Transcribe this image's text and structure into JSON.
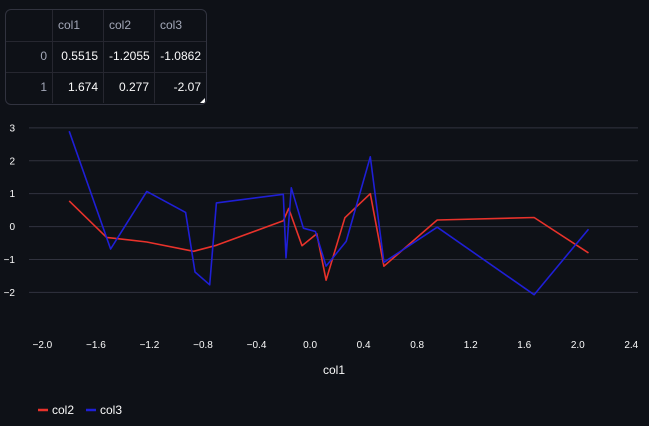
{
  "table": {
    "columns": [
      "",
      "col1",
      "col2",
      "col3"
    ],
    "rows": [
      {
        "index": "0",
        "col1": "0.5515",
        "col2": "-1.2055",
        "col3": "-1.0862"
      },
      {
        "index": "1",
        "col1": "1.674",
        "col2": "0.277",
        "col3": "-2.07"
      }
    ]
  },
  "chart_data": {
    "type": "line",
    "title": "",
    "xlabel": "col1",
    "ylabel": "",
    "xlim": [
      -2.1,
      2.45
    ],
    "ylim": [
      -2.9,
      3.3
    ],
    "x_ticks": [
      -2.0,
      -1.6,
      -1.2,
      -0.8,
      -0.4,
      0.0,
      0.4,
      0.8,
      1.2,
      1.6,
      2.0,
      2.4
    ],
    "x_tick_labels": [
      "−2.0",
      "−1.6",
      "−1.2",
      "−0.8",
      "−0.4",
      "0.0",
      "0.4",
      "0.8",
      "1.2",
      "1.6",
      "2.0",
      "2.4"
    ],
    "y_ticks": [
      -2,
      -1,
      0,
      1,
      2,
      3
    ],
    "y_tick_labels": [
      "−2",
      "−1",
      "0",
      "1",
      "2",
      "3"
    ],
    "grid": "horizontal",
    "legend_position": "bottom-left",
    "series": [
      {
        "name": "col2",
        "color": "#e8322b",
        "points": [
          [
            -1.8,
            0.78
          ],
          [
            -1.52,
            -0.33
          ],
          [
            -1.22,
            -0.47
          ],
          [
            -0.87,
            -0.75
          ],
          [
            -0.7,
            -0.57
          ],
          [
            -0.2,
            0.18
          ],
          [
            -0.16,
            0.55
          ],
          [
            -0.06,
            -0.58
          ],
          [
            0.05,
            -0.22
          ],
          [
            0.12,
            -1.63
          ],
          [
            0.26,
            0.27
          ],
          [
            0.45,
            1.0
          ],
          [
            0.5515,
            -1.2055
          ],
          [
            0.95,
            0.2
          ],
          [
            1.674,
            0.277
          ],
          [
            2.08,
            -0.8
          ]
        ]
      },
      {
        "name": "col3",
        "color": "#1f1fd6",
        "points": [
          [
            -1.8,
            2.9
          ],
          [
            -1.49,
            -0.68
          ],
          [
            -1.22,
            1.07
          ],
          [
            -0.93,
            0.43
          ],
          [
            -0.86,
            -1.38
          ],
          [
            -0.75,
            -1.77
          ],
          [
            -0.7,
            0.72
          ],
          [
            -0.2,
            0.98
          ],
          [
            -0.18,
            -0.95
          ],
          [
            -0.14,
            1.18
          ],
          [
            -0.05,
            -0.05
          ],
          [
            0.04,
            -0.15
          ],
          [
            0.12,
            -1.2
          ],
          [
            0.27,
            -0.45
          ],
          [
            0.45,
            2.12
          ],
          [
            0.5515,
            -1.0862
          ],
          [
            0.95,
            -0.02
          ],
          [
            1.674,
            -2.07
          ],
          [
            2.08,
            -0.08
          ]
        ]
      }
    ]
  }
}
